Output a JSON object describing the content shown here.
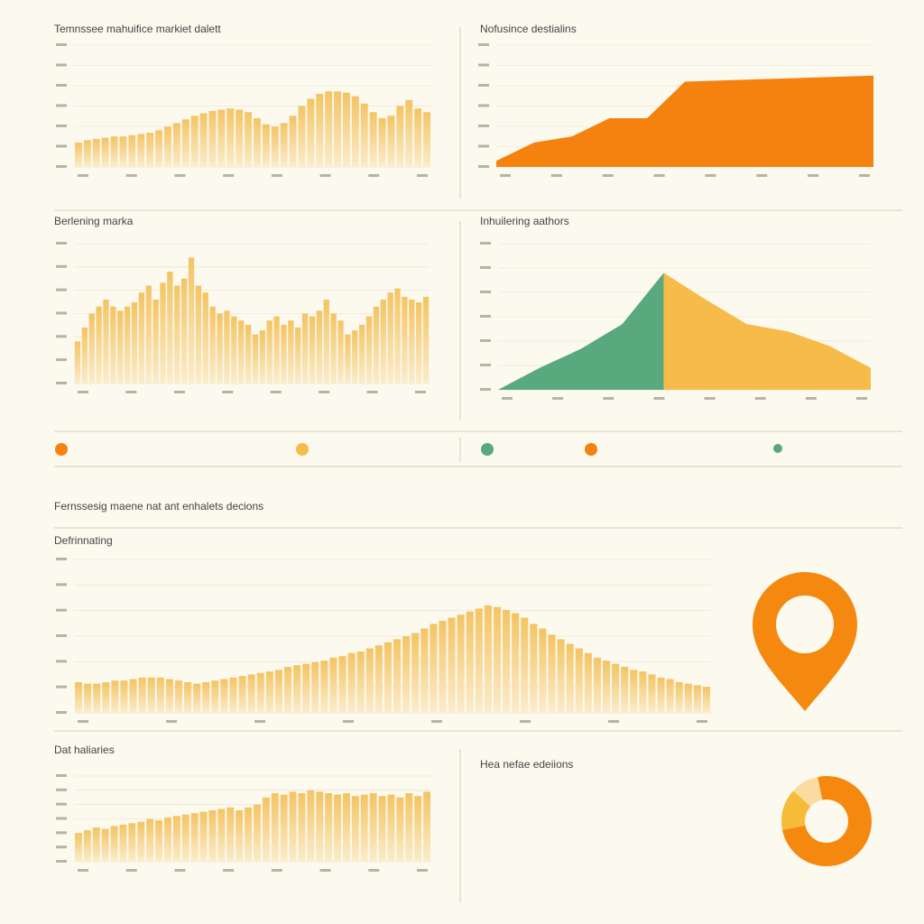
{
  "heading": "Fernssesig maene nat ant enhalets decions",
  "chart_data": [
    {
      "type": "bar",
      "title": "Temnssee mahuifice markiet dalett",
      "color": "#f4c463",
      "ylim": [
        0,
        100
      ],
      "values": [
        20,
        22,
        23,
        24,
        25,
        25,
        26,
        27,
        28,
        30,
        33,
        36,
        39,
        42,
        44,
        46,
        47,
        48,
        47,
        45,
        40,
        35,
        33,
        36,
        42,
        50,
        56,
        60,
        62,
        62,
        61,
        58,
        52,
        45,
        40,
        42,
        50,
        55,
        48,
        45
      ]
    },
    {
      "type": "area",
      "title": "Nofusince destialins",
      "ylim": [
        0,
        100
      ],
      "series": [
        {
          "color": "#f5820f",
          "values": [
            5,
            20,
            25,
            40,
            40,
            70,
            71,
            72,
            73,
            74,
            75
          ]
        }
      ]
    },
    {
      "type": "bar",
      "title": "Berlening marka",
      "color": "#f4c463",
      "ylim": [
        0,
        100
      ],
      "values": [
        30,
        40,
        50,
        55,
        60,
        55,
        52,
        55,
        58,
        65,
        70,
        60,
        72,
        80,
        70,
        75,
        90,
        70,
        65,
        55,
        50,
        52,
        48,
        45,
        42,
        35,
        38,
        45,
        48,
        42,
        45,
        40,
        50,
        48,
        52,
        60,
        50,
        45,
        35,
        38,
        42,
        48,
        55,
        60,
        65,
        68,
        62,
        60,
        58,
        62
      ]
    },
    {
      "type": "area",
      "title": "Inhuilering aathors",
      "ylim": [
        0,
        100
      ],
      "series": [
        {
          "color": "#5aa97e",
          "values": [
            0,
            15,
            28,
            45,
            80,
            null,
            null,
            null,
            null,
            null
          ]
        },
        {
          "color": "#f7bb4a",
          "values": [
            null,
            null,
            null,
            null,
            80,
            62,
            45,
            40,
            30,
            15
          ]
        }
      ]
    },
    {
      "type": "bar",
      "title": "Defrinnating",
      "color": "#f4c463",
      "ylim": [
        0,
        100
      ],
      "values": [
        20,
        19,
        19,
        20,
        21,
        21,
        22,
        23,
        23,
        23,
        22,
        21,
        20,
        19,
        20,
        21,
        22,
        23,
        24,
        25,
        26,
        27,
        28,
        30,
        31,
        32,
        33,
        34,
        36,
        37,
        39,
        40,
        42,
        44,
        46,
        48,
        50,
        52,
        55,
        58,
        60,
        62,
        64,
        66,
        68,
        70,
        69,
        67,
        65,
        62,
        58,
        55,
        51,
        48,
        45,
        42,
        39,
        36,
        34,
        32,
        30,
        28,
        27,
        25,
        23,
        22,
        20,
        19,
        18,
        17
      ]
    },
    {
      "type": "bar",
      "title": "Dat haliaries",
      "color": "#f4c463",
      "ylim": [
        0,
        60
      ],
      "values": [
        20,
        22,
        24,
        23,
        25,
        26,
        27,
        28,
        30,
        29,
        31,
        32,
        33,
        34,
        35,
        36,
        37,
        38,
        36,
        38,
        40,
        45,
        48,
        47,
        49,
        48,
        50,
        49,
        48,
        47,
        48,
        46,
        47,
        48,
        46,
        47,
        45,
        48,
        46,
        49
      ]
    },
    {
      "type": "pie",
      "title": "Hea nefae edeiions",
      "values": [
        75,
        15,
        10
      ],
      "colors": [
        "#f5880f",
        "#f7bb3a",
        "#fbdca0"
      ]
    }
  ]
}
